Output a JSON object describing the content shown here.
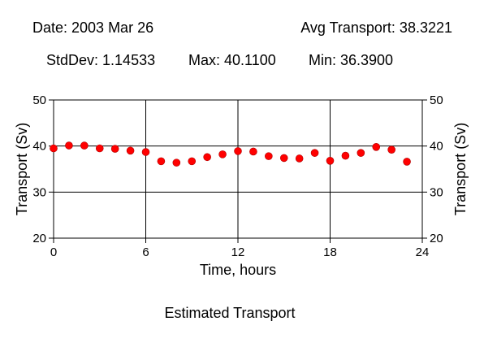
{
  "header": {
    "date": "Date: 2003 Mar 26",
    "avg": "Avg Transport: 38.3221",
    "stddev": "StdDev: 1.14533",
    "max": "Max: 40.1100",
    "min": "Min: 36.3900"
  },
  "caption": "Estimated Transport",
  "chart_data": {
    "type": "scatter",
    "title": "",
    "xlabel": "Time, hours",
    "ylabel": "Transport (Sv)",
    "ylabel_right": "Transport (Sv)",
    "xlim": [
      0,
      24
    ],
    "ylim": [
      20,
      50
    ],
    "x_ticks": [
      0,
      6,
      12,
      18,
      24
    ],
    "y_ticks": [
      20,
      30,
      40,
      50
    ],
    "grid": true,
    "marker_color": "#ff0000",
    "series": [
      {
        "x": [
          0,
          1,
          2,
          3,
          4,
          5,
          6,
          7,
          8,
          9,
          10,
          11,
          12,
          13,
          14,
          15,
          16,
          17,
          18,
          19,
          20,
          21,
          22,
          23
        ],
        "values": [
          39.5,
          40.11,
          40.1,
          39.5,
          39.4,
          39.0,
          38.7,
          36.7,
          36.39,
          36.7,
          37.6,
          38.2,
          38.9,
          38.8,
          37.8,
          37.4,
          37.3,
          38.5,
          36.8,
          37.9,
          38.5,
          39.8,
          39.2,
          36.6
        ]
      }
    ]
  }
}
